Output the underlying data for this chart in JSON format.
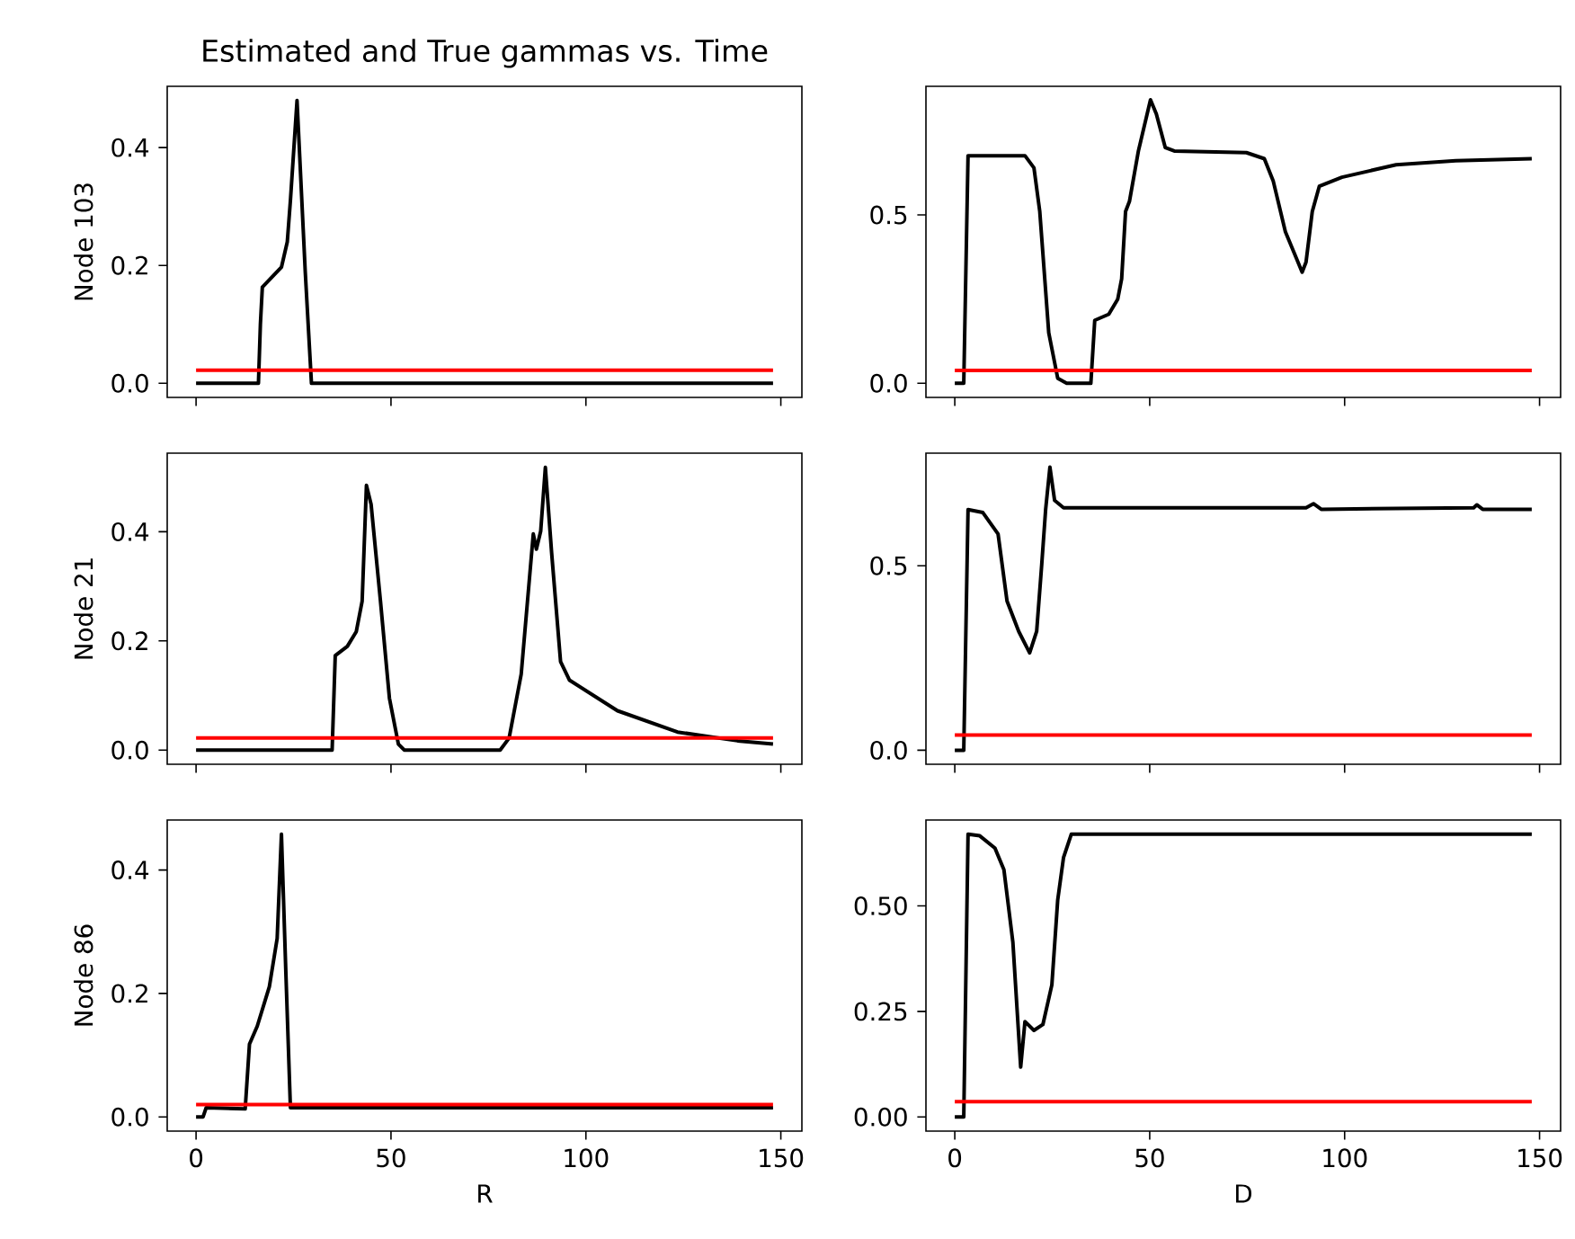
{
  "chart_data": [
    {
      "type": "line",
      "title": "Estimated and True gammas vs. Time",
      "ylabel": "Node 103",
      "xlim": [
        -7.4,
        155.4
      ],
      "ylim": [
        -0.024,
        0.504
      ],
      "xticks": [
        0,
        50,
        100,
        150
      ],
      "yticks": [
        {
          "value": 0,
          "label": "0.0"
        },
        {
          "value": 0.2,
          "label": "0.2"
        },
        {
          "value": 0.4,
          "label": "0.4"
        }
      ],
      "tick_labels": "y",
      "series": [
        {
          "color": "#000000",
          "x": [
            0,
            16,
            16.5,
            17,
            21.9,
            23.4,
            24.2,
            25.9,
            28,
            29.6,
            148
          ],
          "values": [
            0,
            0,
            0.1,
            0.163,
            0.197,
            0.24,
            0.31,
            0.48,
            0.19,
            0,
            0
          ]
        },
        {
          "color": "#ff0000",
          "x": [
            0,
            148
          ],
          "values": [
            0.022,
            0.022
          ]
        }
      ]
    },
    {
      "type": "line",
      "xlim": [
        -7.4,
        155.4
      ],
      "ylim": [
        -0.042,
        0.882
      ],
      "xticks": [
        0,
        50,
        100,
        150
      ],
      "yticks": [
        {
          "value": 0,
          "label": "0.0"
        },
        {
          "value": 0.5,
          "label": "0.5"
        }
      ],
      "tick_labels": "y",
      "series": [
        {
          "color": "#000000",
          "x": [
            0,
            2.3,
            3.4,
            18,
            20.3,
            21.8,
            24.1,
            26.4,
            28.7,
            34.9,
            35.9,
            39.5,
            41.8,
            42.8,
            43.8,
            44.8,
            47.1,
            50.2,
            51.7,
            54,
            56.3,
            74.8,
            79.4,
            81.7,
            84.8,
            87.1,
            89.1,
            90.1,
            91.7,
            93.5,
            99.3,
            113.2,
            128.5,
            148
          ],
          "values": [
            0,
            0,
            0.676,
            0.676,
            0.64,
            0.51,
            0.15,
            0.015,
            0,
            0,
            0.187,
            0.205,
            0.25,
            0.31,
            0.51,
            0.54,
            0.69,
            0.842,
            0.8,
            0.7,
            0.69,
            0.685,
            0.667,
            0.6,
            0.45,
            0.386,
            0.33,
            0.36,
            0.51,
            0.585,
            0.612,
            0.649,
            0.661,
            0.667
          ]
        },
        {
          "color": "#ff0000",
          "x": [
            0,
            148
          ],
          "values": [
            0.038,
            0.038
          ]
        }
      ]
    },
    {
      "type": "line",
      "ylabel": "Node 21",
      "xlim": [
        -7.4,
        155.4
      ],
      "ylim": [
        -0.026,
        0.544
      ],
      "xticks": [
        0,
        50,
        100,
        150
      ],
      "yticks": [
        {
          "value": 0,
          "label": "0.0"
        },
        {
          "value": 0.2,
          "label": "0.2"
        },
        {
          "value": 0.4,
          "label": "0.4"
        }
      ],
      "tick_labels": "y",
      "series": [
        {
          "color": "#000000",
          "x": [
            0,
            34.9,
            35.7,
            38.8,
            41.1,
            42.6,
            43.7,
            44.9,
            47.3,
            49.6,
            51.9,
            53.4,
            78,
            80.3,
            83.4,
            86.5,
            87.3,
            88.4,
            89.6,
            91.2,
            93.5,
            95.8,
            108.1,
            123.5,
            138.9,
            148
          ],
          "values": [
            0,
            0,
            0.173,
            0.19,
            0.217,
            0.273,
            0.485,
            0.45,
            0.273,
            0.095,
            0.011,
            0,
            0,
            0.022,
            0.139,
            0.396,
            0.368,
            0.401,
            0.518,
            0.362,
            0.162,
            0.128,
            0.072,
            0.033,
            0.017,
            0.011
          ]
        },
        {
          "color": "#ff0000",
          "x": [
            0,
            148
          ],
          "values": [
            0.022,
            0.022
          ]
        }
      ]
    },
    {
      "type": "line",
      "xlim": [
        -7.4,
        155.4
      ],
      "ylim": [
        -0.038,
        0.805
      ],
      "xticks": [
        0,
        50,
        100,
        150
      ],
      "yticks": [
        {
          "value": 0,
          "label": "0.0"
        },
        {
          "value": 0.5,
          "label": "0.5"
        }
      ],
      "tick_labels": "y",
      "series": [
        {
          "color": "#000000",
          "x": [
            0,
            2.3,
            3.4,
            7.2,
            11.1,
            13.4,
            16.4,
            19.2,
            21,
            22.3,
            23.3,
            24.4,
            25.6,
            27.9,
            37.2,
            90.1,
            92,
            94,
            133.1,
            133.9,
            135.4,
            148
          ],
          "values": [
            0,
            0,
            0.652,
            0.644,
            0.586,
            0.404,
            0.322,
            0.264,
            0.322,
            0.503,
            0.652,
            0.767,
            0.677,
            0.657,
            0.657,
            0.657,
            0.668,
            0.653,
            0.657,
            0.665,
            0.653,
            0.653
          ]
        },
        {
          "color": "#ff0000",
          "x": [
            0,
            148
          ],
          "values": [
            0.041,
            0.041
          ]
        }
      ]
    },
    {
      "type": "line",
      "ylabel": "Node 86",
      "xlabel": "R",
      "xlim": [
        -7.4,
        155.4
      ],
      "ylim": [
        -0.023,
        0.481
      ],
      "xticks": [
        0,
        50,
        100,
        150
      ],
      "yticks": [
        {
          "value": 0,
          "label": "0.0"
        },
        {
          "value": 0.2,
          "label": "0.2"
        },
        {
          "value": 0.4,
          "label": "0.4"
        }
      ],
      "series": [
        {
          "color": "#000000",
          "x": [
            0,
            1.8,
            2.6,
            12.6,
            13.7,
            15.7,
            18.8,
            20.8,
            21.9,
            23,
            24.2,
            148
          ],
          "values": [
            0,
            0,
            0.015,
            0.013,
            0.118,
            0.147,
            0.211,
            0.289,
            0.458,
            0.24,
            0.015,
            0.015
          ]
        },
        {
          "color": "#ff0000",
          "x": [
            0,
            148
          ],
          "values": [
            0.02,
            0.02
          ]
        }
      ]
    },
    {
      "type": "line",
      "xlabel": "D",
      "xlim": [
        -7.4,
        155.4
      ],
      "ylim": [
        -0.0335,
        0.7035
      ],
      "xticks": [
        0,
        50,
        100,
        150
      ],
      "yticks": [
        {
          "value": 0,
          "label": "0.00"
        },
        {
          "value": 0.25,
          "label": "0.25"
        },
        {
          "value": 0.5,
          "label": "0.50"
        }
      ],
      "series": [
        {
          "color": "#000000",
          "x": [
            0,
            2.3,
            3.4,
            6.4,
            10.3,
            12.6,
            14.9,
            16.9,
            18,
            20.3,
            22.6,
            24.9,
            26.4,
            27.9,
            29.9,
            148
          ],
          "values": [
            0,
            0,
            0.67,
            0.666,
            0.637,
            0.586,
            0.414,
            0.118,
            0.226,
            0.205,
            0.219,
            0.313,
            0.514,
            0.615,
            0.67,
            0.67
          ]
        },
        {
          "color": "#ff0000",
          "x": [
            0,
            148
          ],
          "values": [
            0.036,
            0.036
          ]
        }
      ]
    }
  ]
}
